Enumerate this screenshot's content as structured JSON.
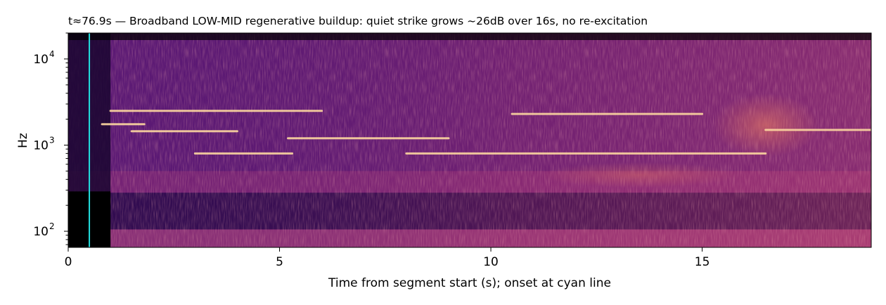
{
  "chart_data": {
    "type": "heatmap",
    "title": "t≈76.9s  —  Broadband LOW-MID regenerative buildup: quiet strike grows ~26dB over 16s, no re-excitation",
    "xlabel": "Time from segment start (s); onset at cyan line",
    "ylabel": "Hz",
    "x_range": [
      0,
      19
    ],
    "y_range": [
      65,
      20000
    ],
    "y_scale": "log",
    "x_ticks": [
      0,
      5,
      10,
      15
    ],
    "x_tick_labels": [
      "0",
      "5",
      "10",
      "15"
    ],
    "y_ticks": [
      100,
      1000,
      10000
    ],
    "y_tick_labels": [
      "10",
      "10",
      "10"
    ],
    "y_tick_exponents": [
      "2",
      "3",
      "4"
    ],
    "onset_time": 0.5,
    "onset_color": "#22dddd",
    "colormap": "magma",
    "grid": false,
    "tonal_lines": [
      {
        "hz": 2500,
        "t_start": 1.0,
        "t_end": 6.0
      },
      {
        "hz": 1750,
        "t_start": 0.8,
        "t_end": 1.8
      },
      {
        "hz": 1450,
        "t_start": 1.5,
        "t_end": 4.0
      },
      {
        "hz": 1200,
        "t_start": 5.2,
        "t_end": 9.0
      },
      {
        "hz": 800,
        "t_start": 3.0,
        "t_end": 5.3
      },
      {
        "hz": 800,
        "t_start": 8.0,
        "t_end": 16.5
      },
      {
        "hz": 2300,
        "t_start": 10.5,
        "t_end": 15.0
      },
      {
        "hz": 1500,
        "t_start": 16.5,
        "t_end": 19.0
      }
    ]
  }
}
